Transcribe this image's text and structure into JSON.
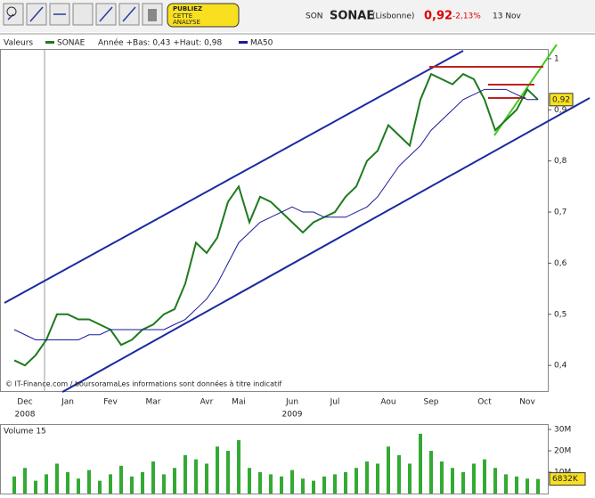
{
  "header": {
    "prefix": "SON",
    "name": "SONAE",
    "market": "(Lisbonne)",
    "price": "0,92",
    "change": "-2,13%",
    "date": "13 Nov",
    "publish": [
      "PUBLIEZ",
      "CETTE",
      "ANALYSE"
    ]
  },
  "chart_data": [
    {
      "type": "line",
      "legend_title": "Valeurs",
      "range_text": "Année +Bas: 0,43 +Haut: 0,98",
      "source": "© IT-Finance.com / boursoramaLes informations sont données à titre indicatif",
      "categories": [
        null,
        "Dec",
        null,
        null,
        null,
        "Jan",
        null,
        null,
        null,
        "Fev",
        null,
        null,
        null,
        "Mar",
        null,
        null,
        null,
        null,
        "Avr",
        null,
        null,
        "Mai",
        null,
        null,
        null,
        null,
        "Jun",
        null,
        null,
        null,
        "Jul",
        null,
        null,
        null,
        null,
        "Aou",
        null,
        null,
        null,
        "Sep",
        null,
        null,
        null,
        null,
        "Oct",
        null,
        null,
        null,
        "Nov",
        null
      ],
      "years": [
        null,
        "2008",
        null,
        null,
        null,
        null,
        null,
        null,
        null,
        null,
        null,
        null,
        null,
        null,
        null,
        null,
        null,
        null,
        null,
        null,
        null,
        null,
        null,
        null,
        null,
        null,
        "2009",
        null,
        null,
        null,
        null,
        null,
        null,
        null,
        null,
        null,
        null,
        null,
        null,
        null,
        null,
        null,
        null,
        null,
        null,
        null,
        null,
        null,
        null,
        null
      ],
      "series": [
        {
          "name": "SONAE",
          "color": "#1e7a1e",
          "values": [
            0.41,
            0.4,
            0.42,
            0.45,
            0.5,
            0.5,
            0.49,
            0.49,
            0.48,
            0.47,
            0.44,
            0.45,
            0.47,
            0.48,
            0.5,
            0.51,
            0.56,
            0.64,
            0.62,
            0.65,
            0.72,
            0.75,
            0.68,
            0.73,
            0.72,
            0.7,
            0.68,
            0.66,
            0.68,
            0.69,
            0.7,
            0.73,
            0.75,
            0.8,
            0.82,
            0.87,
            0.85,
            0.83,
            0.92,
            0.97,
            0.96,
            0.95,
            0.97,
            0.96,
            0.92,
            0.86,
            0.88,
            0.9,
            0.94,
            0.92
          ],
          "value_labels": [
            null,
            null,
            null,
            null,
            null,
            null,
            null,
            null,
            null,
            null,
            null,
            null,
            null,
            null,
            null,
            null,
            null,
            null,
            null,
            null,
            null,
            null,
            null,
            null,
            null,
            null,
            null,
            null,
            null,
            null,
            null,
            null,
            null,
            null,
            null,
            null,
            null,
            null,
            null,
            null,
            null,
            null,
            null,
            null,
            null,
            null,
            null,
            null,
            null,
            "0,92"
          ]
        },
        {
          "name": "MA50",
          "color": "#1a1a9a",
          "values": [
            0.47,
            0.46,
            0.45,
            0.45,
            0.45,
            0.45,
            0.45,
            0.46,
            0.46,
            0.47,
            0.47,
            0.47,
            0.47,
            0.47,
            0.47,
            0.48,
            0.49,
            0.51,
            0.53,
            0.56,
            0.6,
            0.64,
            0.66,
            0.68,
            0.69,
            0.7,
            0.71,
            0.7,
            0.7,
            0.69,
            0.69,
            0.69,
            0.7,
            0.71,
            0.73,
            0.76,
            0.79,
            0.81,
            0.83,
            0.86,
            0.88,
            0.9,
            0.92,
            0.93,
            0.94,
            0.94,
            0.94,
            0.93,
            0.92,
            0.92
          ]
        }
      ],
      "ylim": [
        0.348,
        1.019
      ],
      "yticks": [
        {
          "value": 0.4,
          "label": "0,4"
        },
        {
          "value": 0.5,
          "label": "0,5"
        },
        {
          "value": 0.6,
          "label": "0,6"
        },
        {
          "value": 0.7,
          "label": "0,7"
        },
        {
          "value": 0.8,
          "label": "0,8"
        },
        {
          "value": 0.9,
          "label": "0,9"
        },
        1
      ]
    },
    {
      "type": "bar",
      "title": "Volume 15",
      "color": "#33aa33",
      "values": [
        8,
        12,
        6,
        9,
        14,
        10,
        7,
        11,
        6,
        9,
        13,
        8,
        10,
        15,
        9,
        12,
        18,
        16,
        14,
        22,
        20,
        25,
        12,
        10,
        9,
        8,
        11,
        7,
        6,
        8,
        9,
        10,
        12,
        15,
        14,
        22,
        18,
        14,
        28,
        20,
        15,
        12,
        10,
        14,
        16,
        12,
        9,
        8,
        7,
        6.832
      ],
      "value_labels": [
        null,
        null,
        null,
        null,
        null,
        null,
        null,
        null,
        null,
        null,
        null,
        null,
        null,
        null,
        null,
        null,
        null,
        null,
        null,
        null,
        null,
        null,
        null,
        null,
        null,
        null,
        null,
        null,
        null,
        null,
        null,
        null,
        null,
        null,
        null,
        null,
        null,
        null,
        null,
        null,
        null,
        null,
        null,
        null,
        null,
        null,
        null,
        null,
        null,
        "6832K"
      ],
      "ylim": [
        0,
        31.7
      ],
      "yticks": [
        {
          "value": 10,
          "label": "10M"
        },
        {
          "value": 20,
          "label": "20M"
        },
        {
          "value": 30,
          "label": "30M"
        }
      ]
    }
  ]
}
